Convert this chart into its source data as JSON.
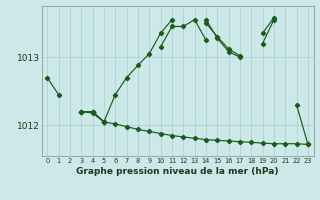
{
  "title": "Graphe pression niveau de la mer (hPa)",
  "bg_color": "#cce8e8",
  "line_color": "#1a5c1a",
  "grid_color": "#aacece",
  "ylabel_ticks": [
    1012,
    1013
  ],
  "xlim": [
    -0.5,
    23.5
  ],
  "ylim": [
    1011.55,
    1013.75
  ],
  "lines": [
    [
      1012.7,
      1012.45,
      null,
      null,
      1012.2,
      1012.05,
      null,
      null,
      null,
      null,
      1013.15,
      1013.45,
      1013.45,
      1013.55,
      1013.25,
      null,
      null,
      null,
      null,
      1013.2,
      1013.55,
      null,
      null,
      null
    ],
    [
      null,
      null,
      null,
      1012.2,
      1012.2,
      1012.05,
      1012.45,
      1012.7,
      1012.88,
      1013.05,
      1013.35,
      1013.55,
      null,
      null,
      1013.5,
      1013.3,
      1013.12,
      1013.02,
      null,
      null,
      null,
      null,
      null,
      null
    ],
    [
      null,
      null,
      null,
      1012.2,
      1012.2,
      1012.05,
      null,
      null,
      null,
      null,
      null,
      null,
      null,
      null,
      1013.55,
      1013.28,
      1013.08,
      1013.0,
      null,
      1013.35,
      1013.58,
      null,
      1012.3,
      1011.72
    ],
    [
      null,
      null,
      null,
      1012.2,
      1012.18,
      1012.05,
      1012.02,
      1011.98,
      1011.94,
      1011.91,
      1011.88,
      1011.85,
      1011.83,
      1011.81,
      1011.79,
      1011.78,
      1011.77,
      1011.76,
      1011.75,
      1011.74,
      1011.73,
      1011.73,
      1011.73,
      1011.72
    ]
  ]
}
